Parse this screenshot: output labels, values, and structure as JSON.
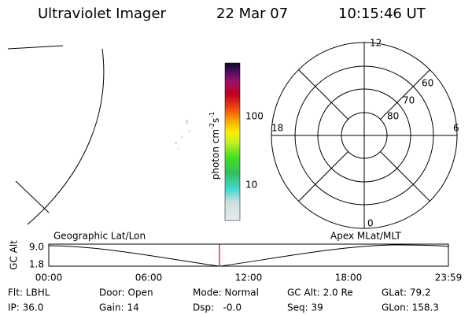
{
  "header": {
    "title": "Ultraviolet Imager",
    "date": "22 Mar 07",
    "time": "10:15:46 UT"
  },
  "colorbar": {
    "ticks": [
      "100",
      "10"
    ],
    "unit": "photon cm",
    "exp1": "-2",
    "unit2": "s",
    "exp2": "-1"
  },
  "polar": {
    "mlt_labels": [
      "12",
      "6",
      "0",
      "18"
    ],
    "mlat_labels": [
      "60",
      "70",
      "80"
    ]
  },
  "timeline": {
    "left_label": "Geographic Lat/Lon",
    "right_label": "Apex MLat/MLT",
    "y_label": "GC Alt",
    "yticks": [
      "9.0",
      "1.8"
    ],
    "xticks": [
      "00:00",
      "06:00",
      "12:00",
      "18:00",
      "23:59"
    ]
  },
  "status": {
    "columns": [
      [
        "Flt: LBHL",
        "IP: 36.0"
      ],
      [
        "Door: Open",
        "Gain: 14"
      ],
      [
        "Mode: Normal",
        "Dsp:   -0.0"
      ],
      [
        "GC Alt: 2.0 Re",
        "Seq: 39"
      ],
      [
        "GLat: 79.2",
        "GLon: 158.3"
      ]
    ]
  }
}
